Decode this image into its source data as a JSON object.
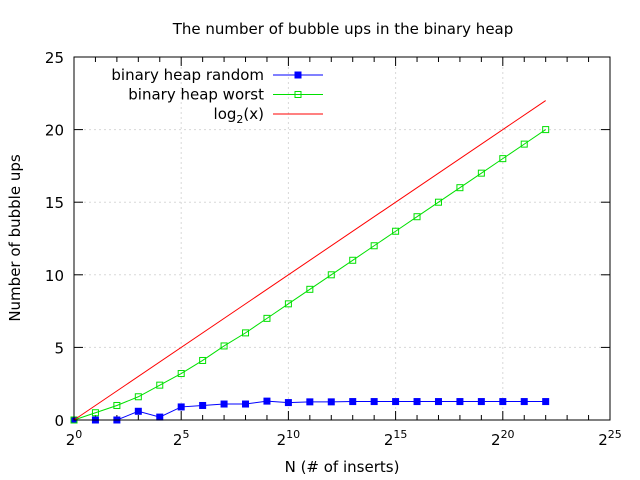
{
  "chart_data": {
    "type": "line",
    "title": "The number of bubble ups in the binary heap",
    "xlabel": "N (# of inserts)",
    "ylabel": "Number of bubble ups",
    "x_scale": "log2",
    "xlim_exponent": [
      0,
      25
    ],
    "x_tick_base": "2",
    "x_tick_exponents": [
      "0",
      "5",
      "10",
      "15",
      "20",
      "25"
    ],
    "ylim": [
      0,
      25
    ],
    "y_ticks": [
      "0",
      "5",
      "10",
      "15",
      "20",
      "25"
    ],
    "grid": true,
    "legend_position": "top-left",
    "series": [
      {
        "name": "binary heap random",
        "color": "#0000ff",
        "marker": "filled-square",
        "x_exponents": [
          0,
          1,
          2,
          3,
          4,
          5,
          6,
          7,
          8,
          9,
          10,
          11,
          12,
          13,
          14,
          15,
          16,
          17,
          18,
          19,
          20,
          21,
          22
        ],
        "values": [
          0,
          0,
          0,
          0.6,
          0.2,
          0.9,
          1.0,
          1.1,
          1.1,
          1.3,
          1.2,
          1.25,
          1.25,
          1.27,
          1.27,
          1.27,
          1.27,
          1.27,
          1.27,
          1.27,
          1.27,
          1.27,
          1.27
        ]
      },
      {
        "name": "binary heap worst",
        "color": "#00e000",
        "marker": "open-square",
        "x_exponents": [
          0,
          1,
          2,
          3,
          4,
          5,
          6,
          7,
          8,
          9,
          10,
          11,
          12,
          13,
          14,
          15,
          16,
          17,
          18,
          19,
          20,
          21,
          22
        ],
        "values": [
          0,
          0.5,
          1.0,
          1.6,
          2.4,
          3.2,
          4.1,
          5.1,
          6.0,
          7.0,
          8.0,
          9.0,
          10.0,
          11.0,
          12.0,
          13.0,
          14.0,
          15.0,
          16.0,
          17.0,
          18.0,
          19.0,
          20.0
        ]
      },
      {
        "name": "log2(x)",
        "legend_base": "log",
        "legend_sub": "2",
        "legend_rest": "(x)",
        "color": "#ff0000",
        "marker": "none",
        "x_exponents": [
          0,
          22
        ],
        "values": [
          0,
          22
        ]
      }
    ]
  }
}
